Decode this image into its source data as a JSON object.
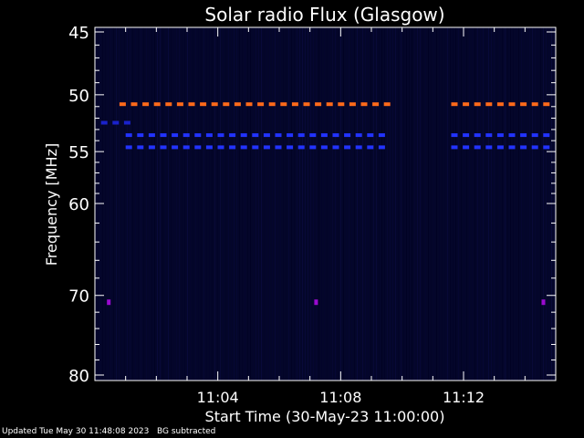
{
  "chart_data": {
    "type": "heatmap",
    "title": "Solar radio Flux (Glasgow)",
    "xlabel": "Start Time (30-May-23 11:00:00)",
    "ylabel": "Frequency [MHz]",
    "x_unit": "minutes after 11:00:00",
    "xlim": [
      0,
      15
    ],
    "ylim": [
      45,
      80
    ],
    "y_scale": "reversed-log",
    "x_ticks": [
      {
        "value": 4,
        "label": "11:04"
      },
      {
        "value": 8,
        "label": "11:08"
      },
      {
        "value": 12,
        "label": "11:12"
      }
    ],
    "y_ticks": [
      {
        "value": 45,
        "label": "45"
      },
      {
        "value": 50,
        "label": "50"
      },
      {
        "value": 55,
        "label": "55"
      },
      {
        "value": 60,
        "label": "60"
      },
      {
        "value": 70,
        "label": "70"
      },
      {
        "value": 80,
        "label": "80"
      }
    ],
    "bands": [
      {
        "freq": 50.8,
        "color": "#ff6a1a",
        "segments": [
          [
            0.8,
            9.7
          ],
          [
            11.6,
            15
          ]
        ]
      },
      {
        "freq": 53.5,
        "color": "#2233ff",
        "segments": [
          [
            1.0,
            9.7
          ],
          [
            11.6,
            15
          ]
        ]
      },
      {
        "freq": 54.6,
        "color": "#2233ff",
        "segments": [
          [
            1.0,
            9.7
          ],
          [
            11.6,
            15
          ]
        ]
      },
      {
        "freq": 52.4,
        "color": "#1a22cc",
        "segments": [
          [
            0.2,
            1.1
          ]
        ]
      }
    ],
    "spots": [
      {
        "x": 0.45,
        "freq": 70.8,
        "color": "#9a0ad0"
      },
      {
        "x": 7.2,
        "freq": 70.8,
        "color": "#9a0ad0"
      },
      {
        "x": 14.6,
        "freq": 70.8,
        "color": "#9a0ad0"
      }
    ],
    "colors": {
      "background": "#000000",
      "foreground": "#ffffff",
      "field": "#04062a"
    }
  },
  "footer": {
    "updated": "Updated Tue May 30 11:48:08 2023",
    "note": "BG subtracted"
  }
}
